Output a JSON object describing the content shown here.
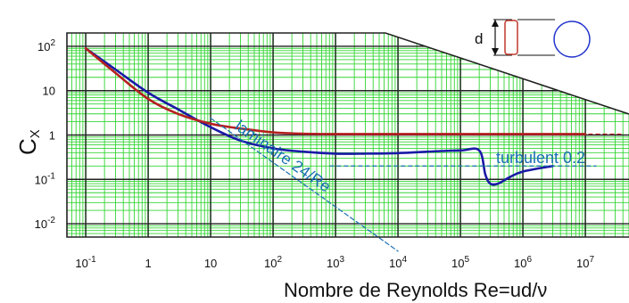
{
  "chart_data": {
    "type": "line",
    "x_scale": "log",
    "y_scale": "log",
    "xlim": [
      0.05,
      50000000
    ],
    "ylim": [
      0.005,
      200
    ],
    "xticks": [
      {
        "base": "10",
        "exp": "-1"
      },
      {
        "base": "1",
        "exp": ""
      },
      {
        "base": "10",
        "exp": ""
      },
      {
        "base": "10",
        "exp": "2"
      },
      {
        "base": "10",
        "exp": "3"
      },
      {
        "base": "10",
        "exp": "4"
      },
      {
        "base": "10",
        "exp": "5"
      },
      {
        "base": "10",
        "exp": "6"
      },
      {
        "base": "10",
        "exp": "7"
      }
    ],
    "yticks": [
      {
        "base": "10",
        "exp": "2"
      },
      {
        "base": "10",
        "exp": ""
      },
      {
        "base": "1",
        "exp": ""
      },
      {
        "base": "10",
        "exp": "-1"
      },
      {
        "base": "10",
        "exp": "-2"
      }
    ],
    "ylabel": {
      "main": "C",
      "sub": "X"
    },
    "xlabel": "Nombre de Reynolds Re=ud/ν",
    "grid": true,
    "series": [
      {
        "color": "#1a1aa6",
        "x": [
          0.1,
          0.3,
          1,
          3,
          10,
          30,
          100,
          300,
          1000,
          3000,
          10000,
          30000,
          100000,
          200000,
          250000,
          300000,
          400000,
          600000,
          1000000,
          3000000
        ],
        "y": [
          90,
          30,
          9,
          3.8,
          1.5,
          0.75,
          0.5,
          0.42,
          0.38,
          0.38,
          0.39,
          0.42,
          0.45,
          0.45,
          0.13,
          0.08,
          0.08,
          0.11,
          0.15,
          0.2
        ]
      },
      {
        "color": "#b52020",
        "x": [
          0.1,
          0.3,
          1,
          3,
          10,
          30,
          100,
          300,
          1000,
          10000,
          100000,
          1000000,
          10000000
        ],
        "y": [
          90,
          25,
          6.5,
          3.0,
          1.8,
          1.4,
          1.15,
          1.07,
          1.05,
          1.05,
          1.05,
          1.05,
          1.05
        ]
      },
      {
        "color": "#1a6fb3",
        "dashed": true,
        "x": [
          10,
          1000,
          10000
        ],
        "y": [
          2.4,
          0.024,
          0.0024
        ]
      }
    ],
    "reference_lines": [
      {
        "color": "#1a6fb3",
        "y": 0.2,
        "x_from": 800,
        "x_to": 15000000
      },
      {
        "color": "#b52020",
        "y": 1.05,
        "x_from": 3000000,
        "x_to": 40000000
      }
    ],
    "annotations": {
      "laminar": "laminaire  24/Re",
      "turbulent": "turbulent 0.2",
      "dimension": "d"
    }
  }
}
